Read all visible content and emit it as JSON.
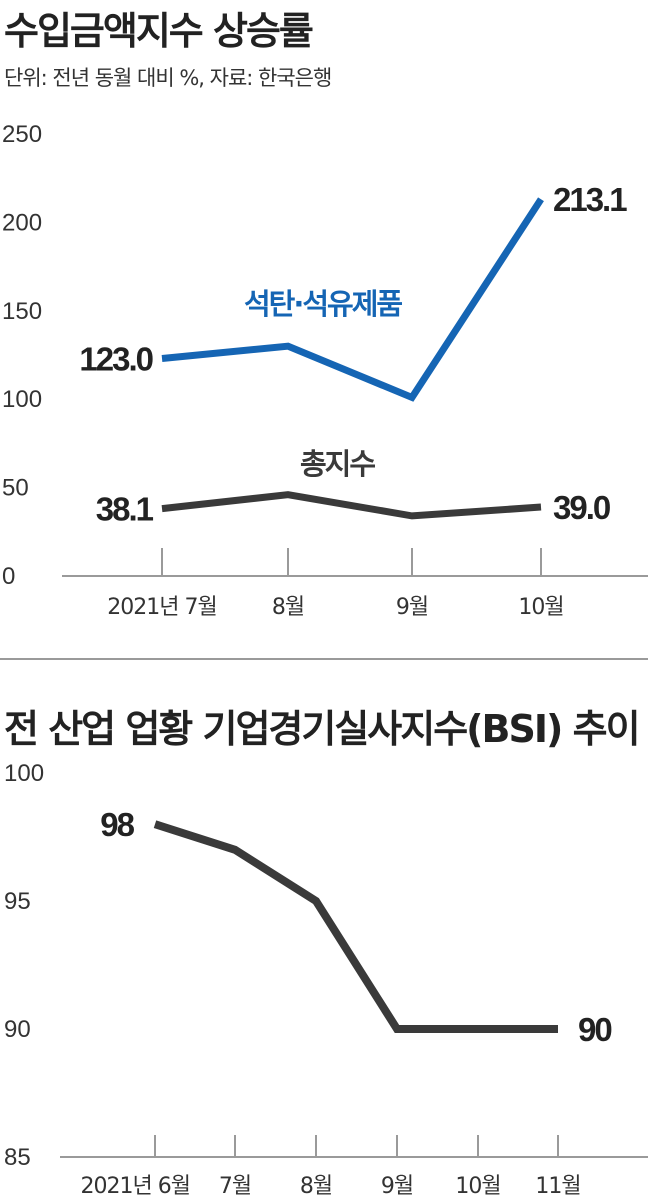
{
  "chart_data": [
    {
      "type": "line",
      "title": "수입금액지수 상승률",
      "subtitle": "단위: 전년 동월 대비 %, 자료: 한국은행",
      "categories": [
        "2021년 7월",
        "8월",
        "9월",
        "10월"
      ],
      "ylim": [
        0,
        250
      ],
      "yticks": [
        "0",
        "50",
        "100",
        "150",
        "200",
        "250"
      ],
      "series": [
        {
          "name": "석탄·석유제품",
          "color": "#1565b4",
          "values": [
            123.0,
            130.0,
            101.0,
            213.1
          ],
          "first_label": "123.0",
          "last_label": "213.1"
        },
        {
          "name": "총지수",
          "color": "#3a3a3a",
          "values": [
            38.1,
            46.0,
            34.0,
            39.0
          ],
          "first_label": "38.1",
          "last_label": "39.0"
        }
      ]
    },
    {
      "type": "line",
      "title": "전 산업 업황 기업경기실사지수(BSI) 추이",
      "categories": [
        "2021년 6월",
        "7월",
        "8월",
        "9월",
        "10월",
        "11월"
      ],
      "ylim": [
        85,
        100
      ],
      "yticks": [
        "85",
        "90",
        "95",
        "100"
      ],
      "series": [
        {
          "color": "#3a3a3a",
          "values": [
            98,
            97,
            95,
            90,
            90,
            90
          ],
          "first_label": "98",
          "last_label": "90"
        }
      ]
    }
  ]
}
